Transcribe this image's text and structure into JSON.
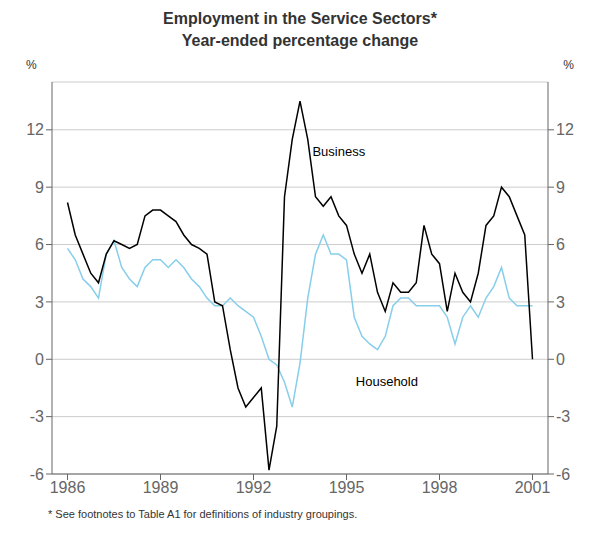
{
  "chart_data": {
    "type": "line",
    "title": "Employment in the Service Sectors*",
    "subtitle": "Year-ended percentage change",
    "ylabel": "%",
    "y2label": "%",
    "footnote": "*  See footnotes to Table A1 for definitions of industry groupings.",
    "xlim": [
      1985.5,
      2001.5
    ],
    "xticks": [
      1986,
      1989,
      1992,
      1995,
      1998,
      2001
    ],
    "ylim": [
      -6,
      14.5
    ],
    "yticks": [
      -6,
      -3,
      0,
      3,
      6,
      9,
      12
    ],
    "y2lim": [
      -6,
      14.5
    ],
    "y2ticks": [
      -6,
      -3,
      0,
      3,
      6,
      9,
      12
    ],
    "grid": true,
    "x": [
      1986.0,
      1986.25,
      1986.5,
      1986.75,
      1987.0,
      1987.25,
      1987.5,
      1987.75,
      1988.0,
      1988.25,
      1988.5,
      1988.75,
      1989.0,
      1989.25,
      1989.5,
      1989.75,
      1990.0,
      1990.25,
      1990.5,
      1990.75,
      1991.0,
      1991.25,
      1991.5,
      1991.75,
      1992.0,
      1992.25,
      1992.5,
      1992.75,
      1993.0,
      1993.25,
      1993.5,
      1993.75,
      1994.0,
      1994.25,
      1994.5,
      1994.75,
      1995.0,
      1995.25,
      1995.5,
      1995.75,
      1996.0,
      1996.25,
      1996.5,
      1996.75,
      1997.0,
      1997.25,
      1997.5,
      1997.75,
      1998.0,
      1998.25,
      1998.5,
      1998.75,
      1999.0,
      1999.25,
      1999.5,
      1999.75,
      2000.0,
      2000.25,
      2000.5,
      2000.75,
      2001.0
    ],
    "series": [
      {
        "name": "Household",
        "color": "#87CEEB",
        "values": [
          5.8,
          5.2,
          4.2,
          3.8,
          3.2,
          5.5,
          6.2,
          4.8,
          4.2,
          3.8,
          4.8,
          5.2,
          5.2,
          4.8,
          5.2,
          4.8,
          4.2,
          3.8,
          3.2,
          2.8,
          2.8,
          3.2,
          2.8,
          2.5,
          2.2,
          1.2,
          0.0,
          -0.3,
          -1.2,
          -2.5,
          -0.2,
          3.2,
          5.5,
          6.5,
          5.5,
          5.5,
          5.2,
          2.2,
          1.2,
          0.8,
          0.5,
          1.2,
          2.8,
          3.2,
          3.2,
          2.8,
          2.8,
          2.8,
          2.8,
          2.2,
          0.8,
          2.2,
          2.8,
          2.2,
          3.2,
          3.8,
          4.8,
          3.2,
          2.8,
          2.8,
          2.8
        ]
      },
      {
        "name": "Business",
        "color": "#000000",
        "values": [
          8.2,
          6.5,
          5.5,
          4.5,
          4.0,
          5.5,
          6.2,
          6.0,
          5.8,
          6.0,
          7.5,
          7.8,
          7.8,
          7.5,
          7.2,
          6.5,
          6.0,
          5.8,
          5.5,
          3.0,
          2.8,
          0.5,
          -1.5,
          -2.5,
          -2.0,
          -1.5,
          -5.8,
          -3.5,
          8.5,
          11.5,
          13.5,
          11.5,
          8.5,
          8.0,
          8.5,
          7.5,
          7.0,
          5.5,
          4.5,
          5.5,
          3.5,
          2.5,
          4.0,
          3.5,
          3.5,
          4.0,
          7.0,
          5.5,
          5.0,
          2.5,
          4.5,
          3.5,
          3.0,
          4.5,
          7.0,
          7.5,
          9.0,
          8.5,
          7.5,
          6.5,
          0.0
        ]
      }
    ],
    "annotations": [
      {
        "text": "Business",
        "x": 1993.9,
        "y": 10.8
      },
      {
        "text": "Household",
        "x": 1995.3,
        "y": -1.2
      }
    ]
  }
}
